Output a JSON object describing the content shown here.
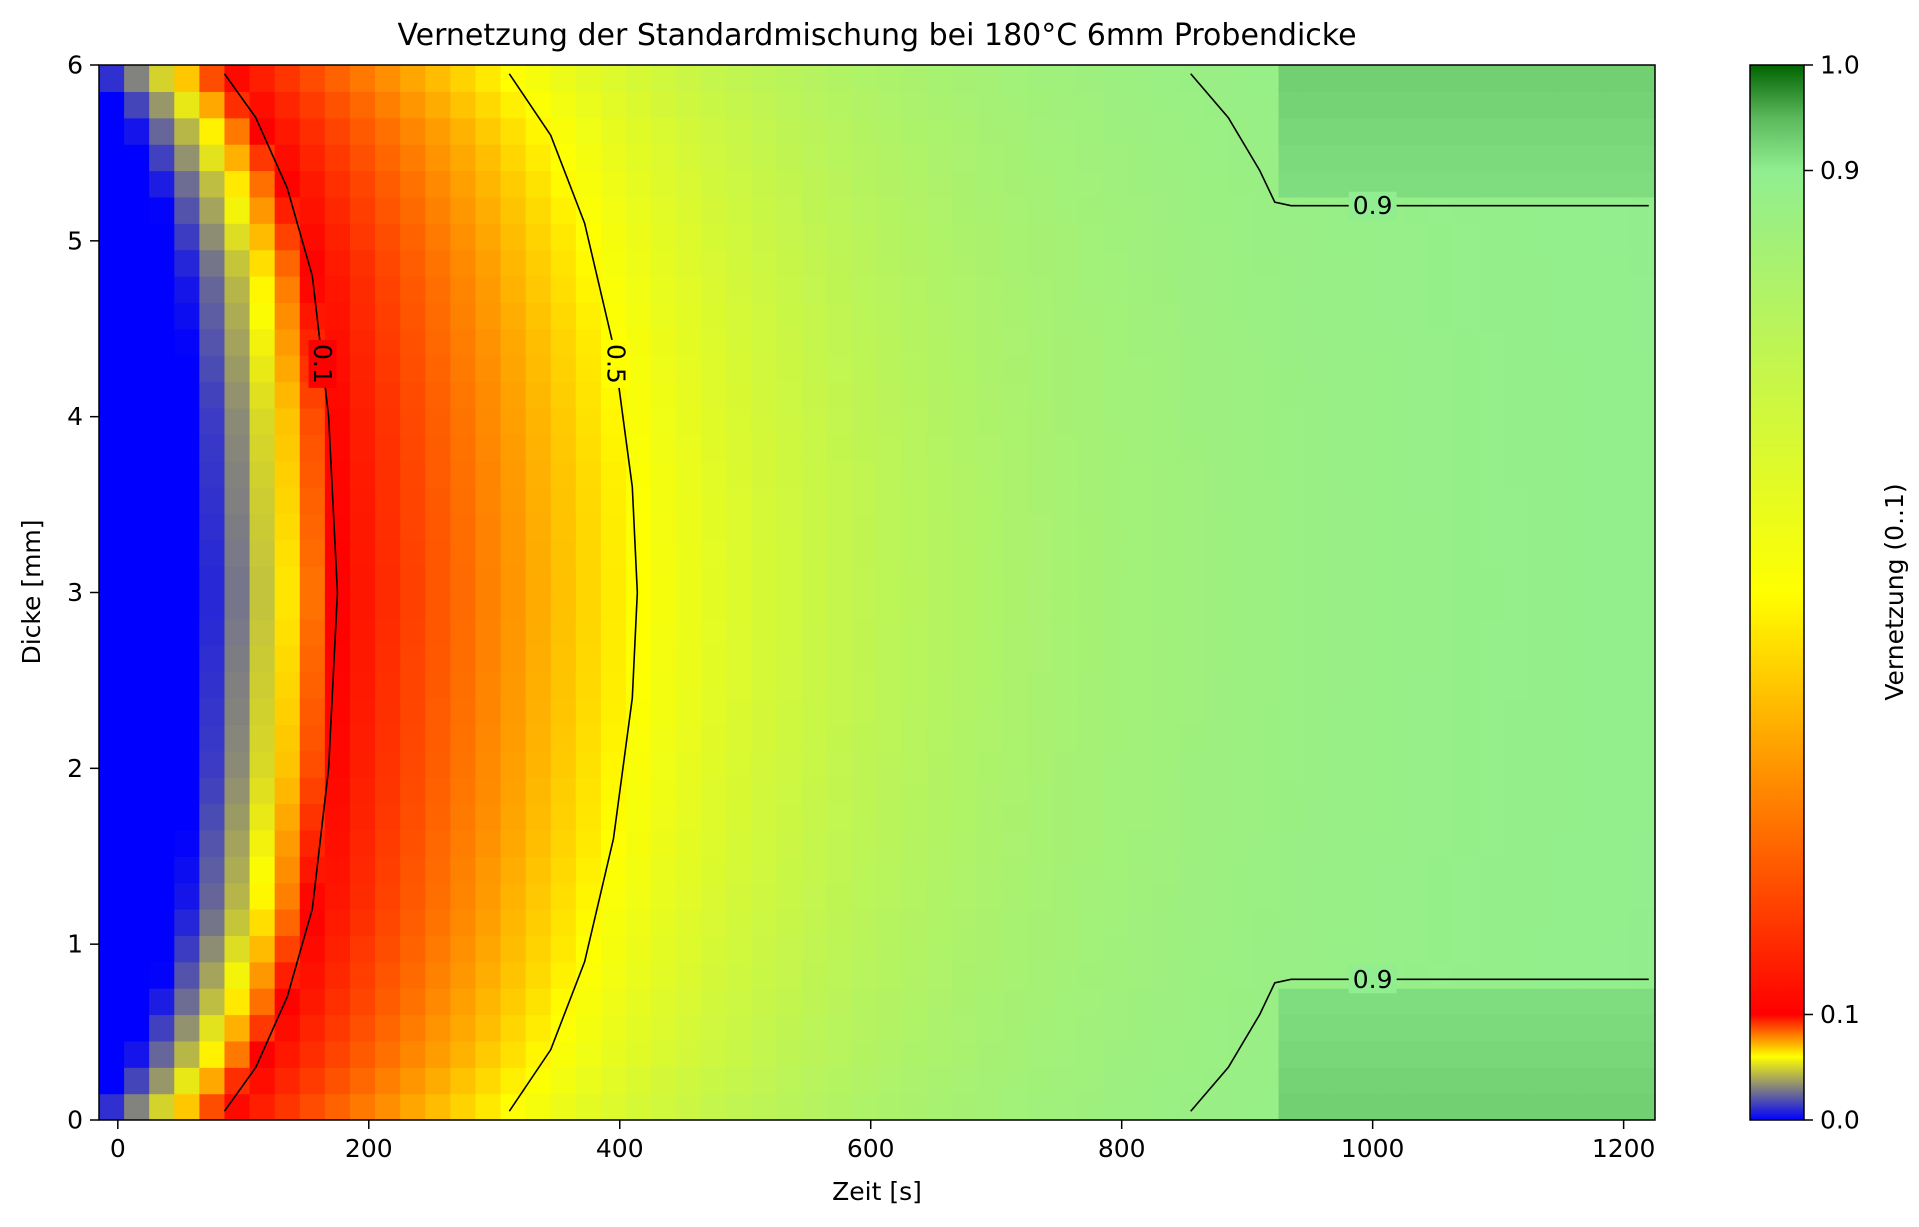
{
  "chart_data": {
    "type": "heatmap",
    "title": "Vernetzung der Standardmischung bei 180°C 6mm Probendicke",
    "xlabel": "Zeit [s]",
    "ylabel": "Dicke [mm]",
    "xlim": [
      -15,
      1225
    ],
    "ylim": [
      0,
      6
    ],
    "x_ticks": [
      0,
      200,
      400,
      600,
      800,
      1000,
      1200
    ],
    "y_ticks": [
      0,
      1,
      2,
      3,
      4,
      5,
      6
    ],
    "colorbar": {
      "label": "Vernetzung (0..1)",
      "range": [
        0,
        1
      ],
      "ticks": [
        0.0,
        0.1,
        0.9,
        1.0
      ],
      "tick_labels": [
        "0.0",
        "0.1",
        "0.9",
        "1.0"
      ],
      "stops": [
        {
          "value": 0.0,
          "color": "#0000ff"
        },
        {
          "value": 0.03,
          "color": "#808080"
        },
        {
          "value": 0.06,
          "color": "#ffff00"
        },
        {
          "value": 0.1,
          "color": "#ff0000"
        },
        {
          "value": 0.5,
          "color": "#ffff00"
        },
        {
          "value": 0.9,
          "color": "#90ee90"
        },
        {
          "value": 0.95,
          "color": "#5cb85c"
        },
        {
          "value": 1.0,
          "color": "#006400"
        }
      ]
    },
    "grid": false,
    "contours": [
      {
        "level": 0.1,
        "label": "0.1",
        "points": [
          [
            85,
            0.05
          ],
          [
            110,
            0.3
          ],
          [
            135,
            0.7
          ],
          [
            155,
            1.2
          ],
          [
            168,
            2.0
          ],
          [
            175,
            3.0
          ],
          [
            168,
            4.0
          ],
          [
            155,
            4.8
          ],
          [
            135,
            5.3
          ],
          [
            110,
            5.7
          ],
          [
            85,
            5.95
          ]
        ]
      },
      {
        "level": 0.5,
        "label": "0.5",
        "points": [
          [
            312,
            0.05
          ],
          [
            345,
            0.4
          ],
          [
            372,
            0.9
          ],
          [
            395,
            1.6
          ],
          [
            410,
            2.4
          ],
          [
            414,
            3.0
          ],
          [
            410,
            3.6
          ],
          [
            395,
            4.4
          ],
          [
            372,
            5.1
          ],
          [
            345,
            5.6
          ],
          [
            312,
            5.95
          ]
        ]
      },
      {
        "level": 0.9,
        "label": "0.9",
        "points": [
          [
            855,
            0.05
          ],
          [
            885,
            0.3
          ],
          [
            910,
            0.6
          ],
          [
            922,
            0.78
          ],
          [
            935,
            0.8
          ],
          [
            1220,
            0.8
          ]
        ]
      },
      {
        "level": 0.9,
        "label": "0.9",
        "points": [
          [
            855,
            5.95
          ],
          [
            885,
            5.7
          ],
          [
            910,
            5.4
          ],
          [
            922,
            5.22
          ],
          [
            935,
            5.2
          ],
          [
            1220,
            5.2
          ]
        ]
      }
    ]
  }
}
